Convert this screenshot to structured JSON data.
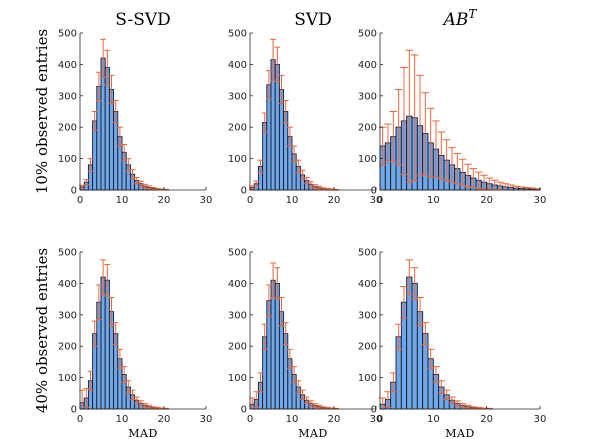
{
  "bar_color": "#6fa8e8",
  "bar_edge": "#1a1a2e",
  "err_color": "#e8663a",
  "chart_data": [
    {
      "type": "bar",
      "title": "S-SVD",
      "row_label": "10% observed entries",
      "xlabel": "",
      "xlim": [
        0,
        30
      ],
      "ylim": [
        0,
        500
      ],
      "xticks": [
        0,
        10,
        20,
        30
      ],
      "yticks": [
        0,
        100,
        200,
        300,
        400,
        500
      ],
      "bin_width": 1,
      "x": [
        0.5,
        1.5,
        2.5,
        3.5,
        4.5,
        5.5,
        6.5,
        7.5,
        8.5,
        9.5,
        10.5,
        11.5,
        12.5,
        13.5,
        14.5,
        15.5,
        16.5,
        17.5,
        18.5,
        19.5,
        20.5
      ],
      "values": [
        10,
        25,
        80,
        220,
        330,
        420,
        390,
        320,
        250,
        170,
        120,
        80,
        50,
        30,
        20,
        12,
        8,
        5,
        3,
        2,
        1
      ],
      "errors": [
        5,
        8,
        20,
        30,
        45,
        60,
        55,
        45,
        35,
        30,
        25,
        20,
        15,
        10,
        8,
        6,
        5,
        3,
        2,
        1,
        1
      ]
    },
    {
      "type": "bar",
      "title": "SVD",
      "row_label": "",
      "xlabel": "",
      "xlim": [
        0,
        30
      ],
      "ylim": [
        0,
        500
      ],
      "xticks": [
        0,
        10,
        20,
        30
      ],
      "yticks": [
        0,
        100,
        200,
        300,
        400,
        500
      ],
      "bin_width": 1,
      "x": [
        0.5,
        1.5,
        2.5,
        3.5,
        4.5,
        5.5,
        6.5,
        7.5,
        8.5,
        9.5,
        10.5,
        11.5,
        12.5,
        13.5,
        14.5,
        15.5,
        16.5,
        17.5,
        18.5,
        19.5,
        20.5
      ],
      "values": [
        8,
        20,
        75,
        215,
        335,
        415,
        400,
        320,
        250,
        170,
        115,
        75,
        48,
        30,
        18,
        11,
        7,
        4,
        3,
        2,
        1
      ],
      "errors": [
        5,
        8,
        20,
        30,
        45,
        65,
        55,
        45,
        35,
        30,
        25,
        20,
        15,
        10,
        8,
        6,
        5,
        3,
        2,
        1,
        1
      ]
    },
    {
      "type": "bar",
      "title": "AB^T",
      "title_base": "AB",
      "title_sup": "T",
      "row_label": "",
      "xlabel": "",
      "xlim": [
        0,
        30
      ],
      "ylim": [
        0,
        500
      ],
      "xticks": [
        0,
        10,
        20,
        30
      ],
      "yticks": [
        0,
        100,
        200,
        300,
        400,
        500
      ],
      "bin_width": 1,
      "x": [
        0.5,
        1.5,
        2.5,
        3.5,
        4.5,
        5.5,
        6.5,
        7.5,
        8.5,
        9.5,
        10.5,
        11.5,
        12.5,
        13.5,
        14.5,
        15.5,
        16.5,
        17.5,
        18.5,
        19.5,
        20.5,
        21.5,
        22.5,
        23.5,
        24.5,
        25.5,
        26.5,
        27.5,
        28.5,
        29.5
      ],
      "values": [
        140,
        150,
        170,
        200,
        220,
        235,
        230,
        205,
        180,
        150,
        130,
        110,
        95,
        80,
        68,
        56,
        46,
        38,
        31,
        25,
        20,
        16,
        13,
        10,
        8,
        6,
        5,
        4,
        3,
        2
      ],
      "errors": [
        60,
        60,
        80,
        120,
        170,
        210,
        200,
        160,
        130,
        110,
        90,
        75,
        65,
        55,
        48,
        42,
        36,
        30,
        26,
        22,
        18,
        15,
        12,
        10,
        8,
        6,
        5,
        4,
        3,
        2
      ]
    },
    {
      "type": "bar",
      "title": "",
      "row_label": "40% observed entries",
      "xlabel": "MAD",
      "xlim": [
        0,
        30
      ],
      "ylim": [
        0,
        500
      ],
      "xticks": [
        0,
        10,
        20,
        30
      ],
      "yticks": [
        0,
        100,
        200,
        300,
        400,
        500
      ],
      "bin_width": 1,
      "x": [
        0.5,
        1.5,
        2.5,
        3.5,
        4.5,
        5.5,
        6.5,
        7.5,
        8.5,
        9.5,
        10.5,
        11.5,
        12.5,
        13.5,
        14.5,
        15.5,
        16.5,
        17.5,
        18.5,
        19.5,
        20.5
      ],
      "values": [
        20,
        35,
        90,
        240,
        340,
        420,
        410,
        310,
        240,
        160,
        110,
        70,
        45,
        28,
        18,
        11,
        7,
        4,
        3,
        2,
        1
      ],
      "errors": [
        40,
        30,
        30,
        40,
        55,
        55,
        50,
        45,
        35,
        30,
        25,
        20,
        15,
        10,
        8,
        6,
        5,
        3,
        2,
        1,
        1
      ]
    },
    {
      "type": "bar",
      "title": "",
      "row_label": "",
      "xlabel": "MAD",
      "xlim": [
        0,
        30
      ],
      "ylim": [
        0,
        500
      ],
      "xticks": [
        0,
        10,
        20,
        30
      ],
      "yticks": [
        0,
        100,
        200,
        300,
        400,
        500
      ],
      "bin_width": 1,
      "x": [
        0.5,
        1.5,
        2.5,
        3.5,
        4.5,
        5.5,
        6.5,
        7.5,
        8.5,
        9.5,
        10.5,
        11.5,
        12.5,
        13.5,
        14.5,
        15.5,
        16.5,
        17.5,
        18.5,
        19.5,
        20.5
      ],
      "values": [
        15,
        30,
        85,
        230,
        345,
        410,
        400,
        310,
        240,
        160,
        110,
        70,
        45,
        28,
        18,
        11,
        7,
        4,
        3,
        2,
        1
      ],
      "errors": [
        20,
        25,
        30,
        40,
        50,
        55,
        50,
        45,
        35,
        30,
        25,
        20,
        15,
        10,
        8,
        6,
        5,
        3,
        2,
        1,
        1
      ]
    },
    {
      "type": "bar",
      "title": "",
      "row_label": "",
      "xlabel": "MAD",
      "xlim": [
        0,
        30
      ],
      "ylim": [
        0,
        500
      ],
      "xticks": [
        0,
        10,
        20,
        30
      ],
      "yticks": [
        0,
        100,
        200,
        300,
        400,
        500
      ],
      "bin_width": 1,
      "x": [
        0.5,
        1.5,
        2.5,
        3.5,
        4.5,
        5.5,
        6.5,
        7.5,
        8.5,
        9.5,
        10.5,
        11.5,
        12.5,
        13.5,
        14.5,
        15.5,
        16.5,
        17.5,
        18.5,
        19.5,
        20.5
      ],
      "values": [
        15,
        30,
        85,
        230,
        340,
        420,
        400,
        310,
        240,
        160,
        110,
        70,
        45,
        28,
        18,
        11,
        7,
        4,
        3,
        2,
        1
      ],
      "errors": [
        20,
        25,
        30,
        40,
        50,
        55,
        50,
        45,
        35,
        30,
        25,
        20,
        15,
        10,
        8,
        6,
        5,
        3,
        2,
        1,
        1
      ]
    }
  ]
}
